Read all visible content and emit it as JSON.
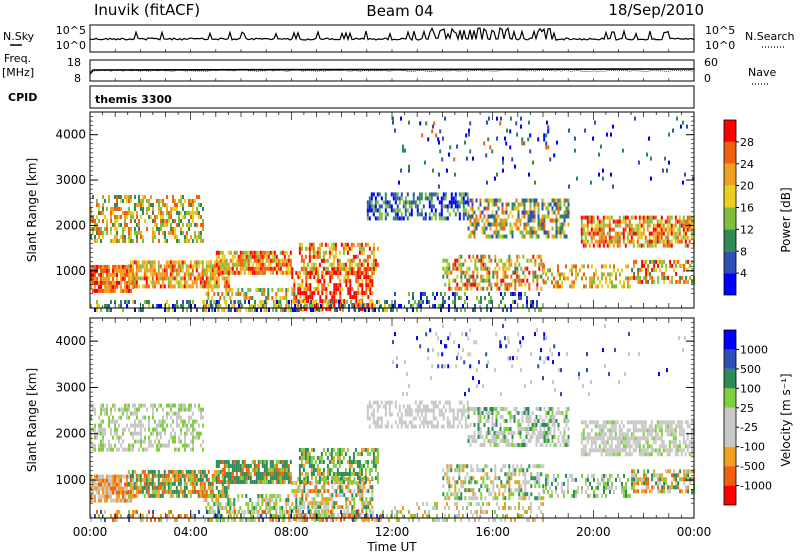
{
  "header": {
    "station": "Inuvik (fitACF)",
    "beam": "Beam 04",
    "date": "18/Sep/2010"
  },
  "status_panels": {
    "nsky_label": "N.Sky",
    "nsearch_label": "N.Search",
    "freq_label": "Freq.",
    "freq_unit": "[MHz]",
    "nave_label": "Nave",
    "cpid_label": "CPID",
    "cpid_value": "themis 3300",
    "nsky_ticks": [
      "10^5",
      "10^0"
    ],
    "freq_ticks": [
      "18",
      "8"
    ],
    "nave_ticks": [
      "60",
      "0"
    ]
  },
  "colors": {
    "power": [
      "#0000ff",
      "#2f4fb8",
      "#2e8b57",
      "#7fbf3f",
      "#e8d020",
      "#f0a020",
      "#f06010",
      "#ff0000"
    ],
    "velocity": [
      "#ff0000",
      "#f06010",
      "#f0a020",
      "#c8c8c8",
      "#c8c8c8",
      "#7fcf3f",
      "#2e8b57",
      "#2f4fb8",
      "#0000ff"
    ]
  },
  "chart_data": [
    {
      "type": "heatmap",
      "name": "power",
      "ylabel": "Slant Range [km]",
      "xlabel": "",
      "xticks": [
        "00:00",
        "04:00",
        "08:00",
        "12:00",
        "16:00",
        "20:00",
        "00:00"
      ],
      "xlim_hours": [
        0,
        24
      ],
      "yticks": [
        1000,
        2000,
        3000,
        4000
      ],
      "ylim": [
        180,
        4500
      ],
      "colorbar_label": "Power [dB]",
      "colorbar_ticks": [
        4,
        8,
        12,
        16,
        20,
        24,
        28
      ],
      "colorbar_range": [
        0,
        30
      ]
    },
    {
      "type": "heatmap",
      "name": "velocity",
      "ylabel": "Slant Range [km]",
      "xlabel": "Time UT",
      "xticks": [
        "00:00",
        "04:00",
        "08:00",
        "12:00",
        "16:00",
        "20:00",
        "00:00"
      ],
      "xlim_hours": [
        0,
        24
      ],
      "yticks": [
        1000,
        2000,
        3000,
        4000
      ],
      "ylim": [
        180,
        4500
      ],
      "colorbar_label": "Velocity [m s⁻¹]",
      "colorbar_ticks": [
        -1000,
        -500,
        -100,
        -25,
        25,
        100,
        500,
        1000
      ]
    }
  ]
}
